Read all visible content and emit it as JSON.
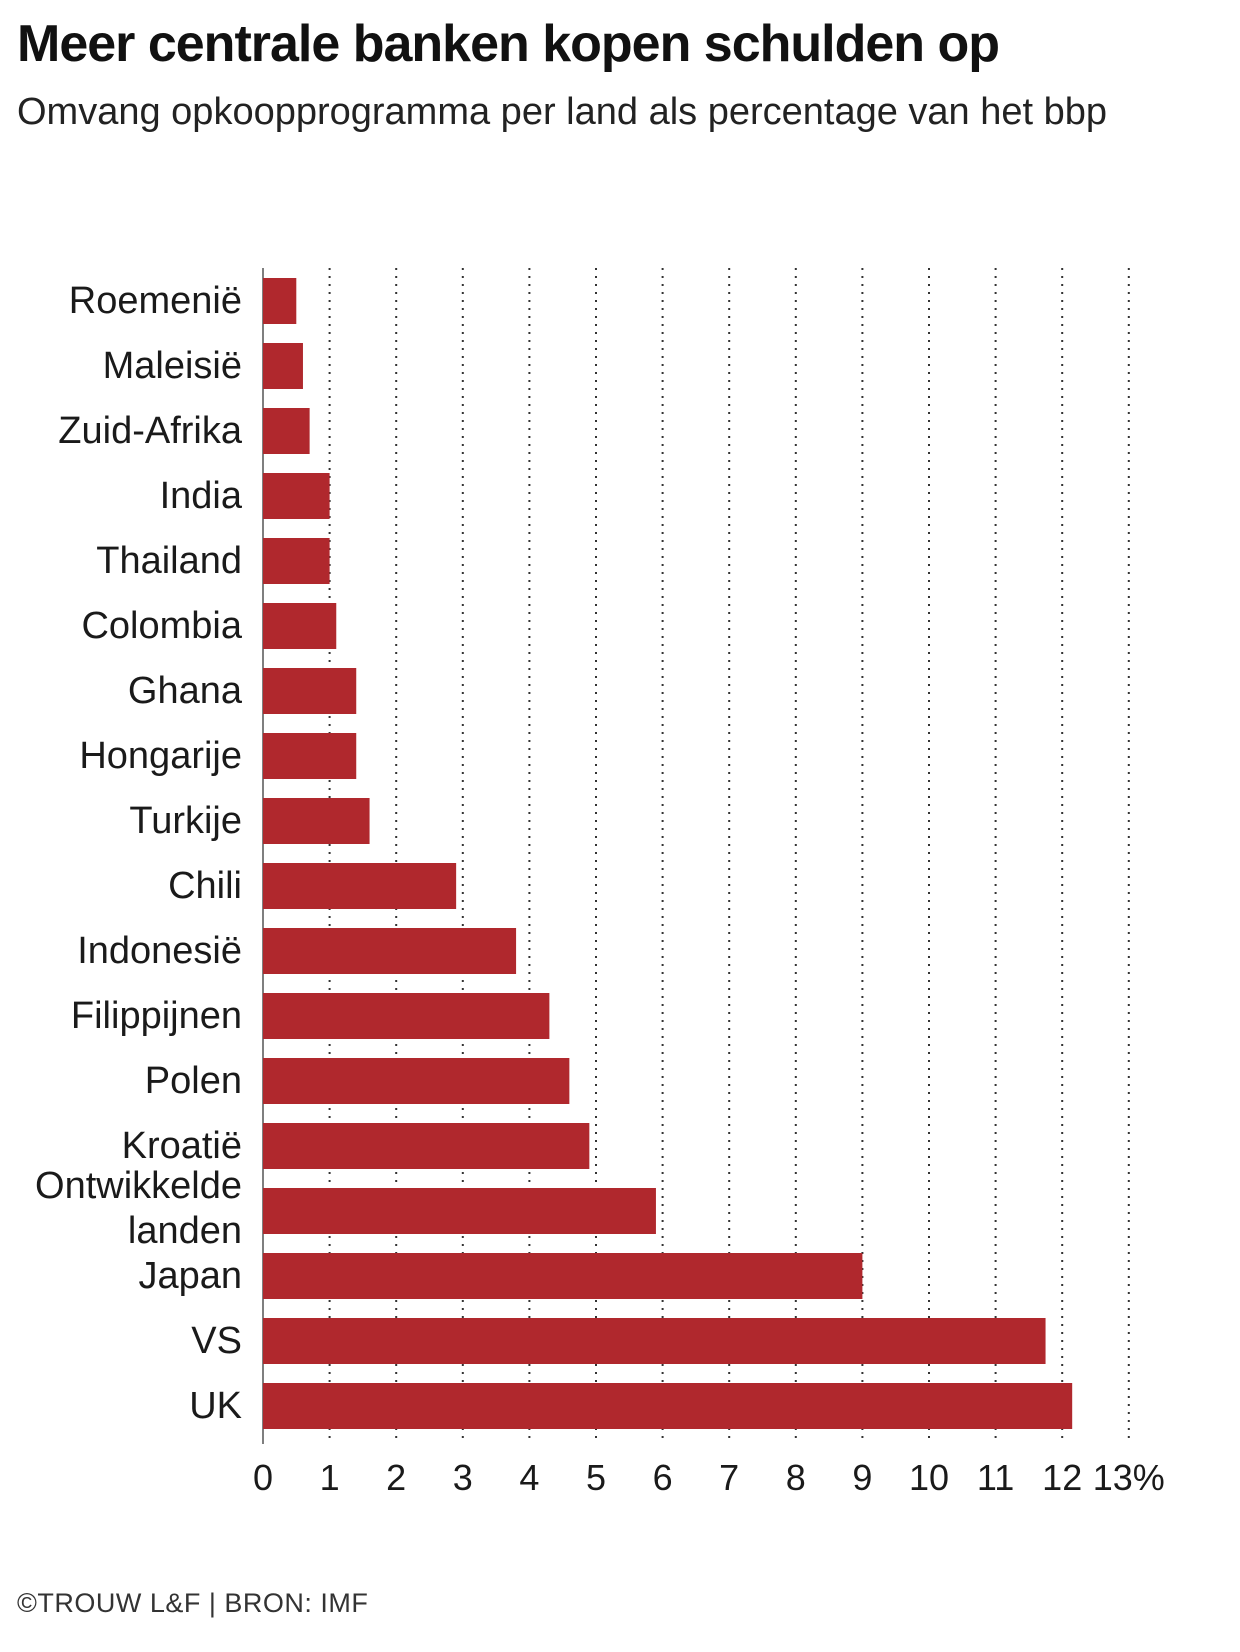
{
  "title": "Meer centrale banken kopen schulden op",
  "subtitle": "Omvang opkoopprogramma per land als percentage van het bbp",
  "footer": "©TROUW L&F | BRON: IMF",
  "colors": {
    "bar": "#b0282d",
    "grid": "#333333",
    "axis": "#555555"
  },
  "chart_data": {
    "type": "bar",
    "orientation": "horizontal",
    "categories": [
      "Roemenië",
      "Maleisië",
      "Zuid-Afrika",
      "India",
      "Thailand",
      "Colombia",
      "Ghana",
      "Hongarije",
      "Turkije",
      "Chili",
      "Indonesië",
      "Filippijnen",
      "Polen",
      "Kroatië",
      "Ontwikkelde landen",
      "Japan",
      "VS",
      "UK"
    ],
    "values": [
      0.5,
      0.6,
      0.7,
      1.0,
      1.0,
      1.1,
      1.4,
      1.4,
      1.6,
      2.9,
      3.8,
      4.3,
      4.6,
      4.9,
      5.9,
      9.0,
      11.75,
      12.15
    ],
    "xlim": [
      0,
      13
    ],
    "xticks": [
      "0",
      "1",
      "2",
      "3",
      "4",
      "5",
      "6",
      "7",
      "8",
      "9",
      "10",
      "11",
      "12",
      "13%"
    ],
    "grid": "vertical dotted",
    "legend": "none"
  }
}
